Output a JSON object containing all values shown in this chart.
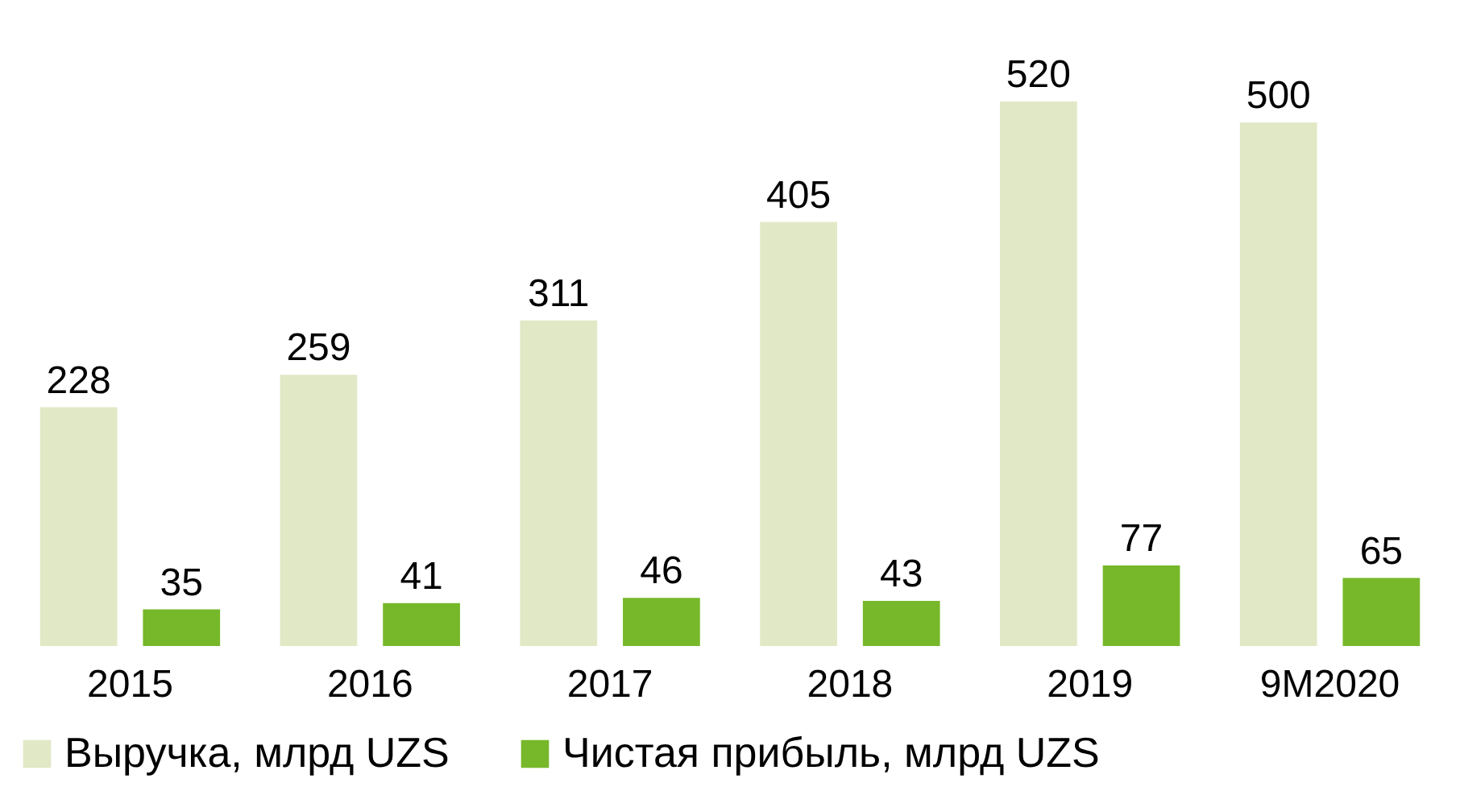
{
  "chart_data": {
    "type": "bar",
    "categories": [
      "2015",
      "2016",
      "2017",
      "2018",
      "2019",
      "9M2020"
    ],
    "series": [
      {
        "name": "Выручка, млрд UZS",
        "color": "#e1e8c6",
        "values": [
          228,
          259,
          311,
          405,
          520,
          500
        ]
      },
      {
        "name": "Чистая прибыль, млрд UZS",
        "color": "#76b82a",
        "values": [
          35,
          41,
          46,
          43,
          77,
          65
        ]
      }
    ],
    "data_labels": true,
    "legend": "bottom",
    "grid": false
  }
}
